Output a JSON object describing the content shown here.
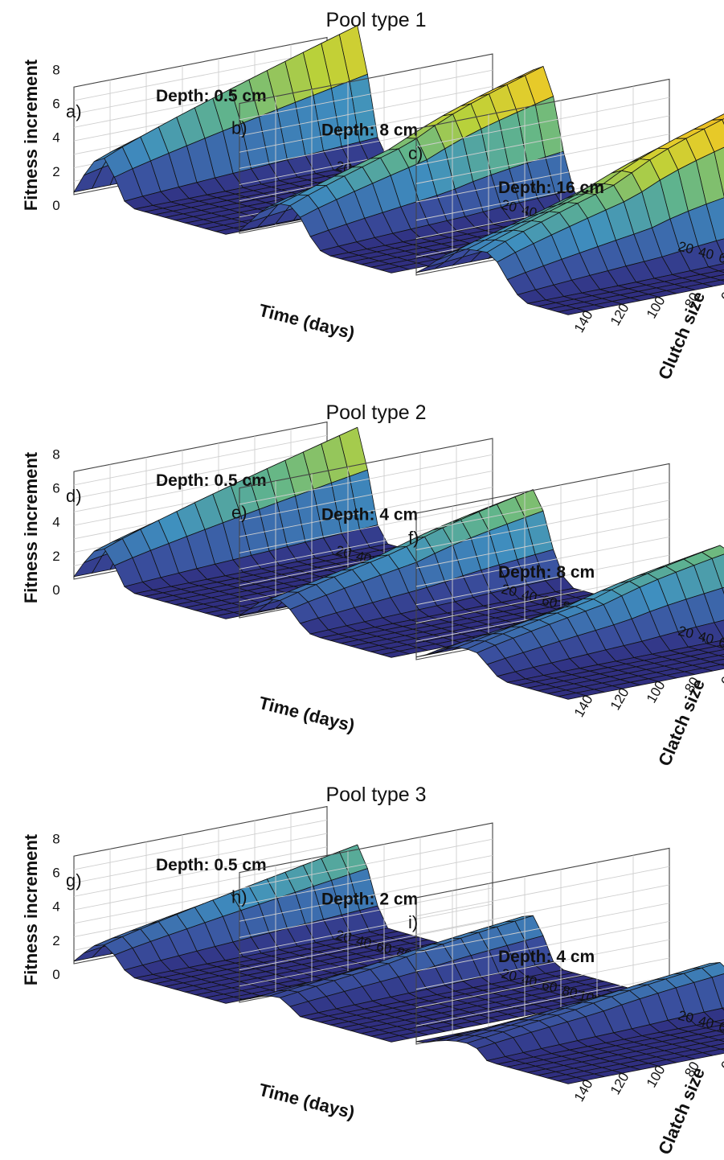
{
  "colors": {
    "surface_low": "#2e2a7c",
    "surface_mid": "#3f8fbf",
    "surface_high_green": "#b9d13a",
    "surface_peak": "#f1b21a",
    "mesh": "#111111",
    "grid": "#cfcfcf"
  },
  "groups": [
    {
      "title": "Pool type 1",
      "clutch_label": "Clutch size",
      "panels": [
        {
          "letter": "a)",
          "depth_label": "Depth: 0.5 cm",
          "peak_value": 7.4,
          "peak_day": 30,
          "fade_days": 50,
          "secondary": 0
        },
        {
          "letter": "b)",
          "depth_label": "Depth: 8 cm",
          "peak_value": 7.6,
          "peak_day": 50,
          "fade_days": 80,
          "secondary": 2.4
        },
        {
          "letter": "c)",
          "depth_label": "Depth: 16 cm",
          "peak_value": 7.8,
          "peak_day": 70,
          "fade_days": 105,
          "secondary": 3.6
        }
      ]
    },
    {
      "title": "Pool type 2",
      "clutch_label": "Clatch size",
      "panels": [
        {
          "letter": "d)",
          "depth_label": "Depth: 0.5 cm",
          "peak_value": 6.4,
          "peak_day": 30,
          "fade_days": 50,
          "secondary": 0
        },
        {
          "letter": "e)",
          "depth_label": "Depth: 4 cm",
          "peak_value": 5.2,
          "peak_day": 40,
          "fade_days": 70,
          "secondary": 1.6
        },
        {
          "letter": "f)",
          "depth_label": "Depth: 8 cm",
          "peak_value": 4.6,
          "peak_day": 55,
          "fade_days": 85,
          "secondary": 1.8
        }
      ]
    },
    {
      "title": "Pool type 3",
      "clutch_label": "Clatch size",
      "panels": [
        {
          "letter": "g)",
          "depth_label": "Depth: 0.5 cm",
          "peak_value": 4.5,
          "peak_day": 30,
          "fade_days": 55,
          "secondary": 0
        },
        {
          "letter": "h)",
          "depth_label": "Depth: 2 cm",
          "peak_value": 2.8,
          "peak_day": 40,
          "fade_days": 60,
          "secondary": 0.6
        },
        {
          "letter": "i)",
          "depth_label": "Depth: 4 cm",
          "peak_value": 2.7,
          "peak_day": 55,
          "fade_days": 70,
          "secondary": 0.7
        }
      ]
    }
  ],
  "y_axis": {
    "label": "Fitness increment",
    "ticks": [
      "0",
      "2",
      "4",
      "6",
      "8"
    ],
    "range": [
      0,
      8
    ]
  },
  "x_axis": {
    "label": "Time (days)",
    "ticks": [
      "20",
      "40",
      "60",
      "80",
      "100",
      "120",
      "140"
    ],
    "range": [
      0,
      150
    ]
  },
  "clutch_ticks": [
    "0",
    "20",
    "40",
    "60",
    "80",
    "100",
    "120",
    "140"
  ],
  "chart_data": {
    "type": "surface",
    "description_of_axes": {
      "x": "Time (days)",
      "y": "Clutch size",
      "z": "Fitness increment"
    },
    "x_range": [
      0,
      150
    ],
    "y_range": [
      0,
      140
    ],
    "z_range": [
      0,
      8
    ],
    "panels": [
      {
        "id": "a)",
        "group": "Pool type 1",
        "depth": "Depth: 0.5 cm",
        "max_z": 7.4
      },
      {
        "id": "b)",
        "group": "Pool type 1",
        "depth": "Depth: 8 cm",
        "max_z": 7.6
      },
      {
        "id": "c)",
        "group": "Pool type 1",
        "depth": "Depth: 16 cm",
        "max_z": 7.8
      },
      {
        "id": "d)",
        "group": "Pool type 2",
        "depth": "Depth: 0.5 cm",
        "max_z": 6.4
      },
      {
        "id": "e)",
        "group": "Pool type 2",
        "depth": "Depth: 4 cm",
        "max_z": 5.2
      },
      {
        "id": "f)",
        "group": "Pool type 2",
        "depth": "Depth: 8 cm",
        "max_z": 4.6
      },
      {
        "id": "g)",
        "group": "Pool type 3",
        "depth": "Depth: 0.5 cm",
        "max_z": 4.5
      },
      {
        "id": "h)",
        "group": "Pool type 3",
        "depth": "Depth: 2 cm",
        "max_z": 2.8
      },
      {
        "id": "i)",
        "group": "Pool type 3",
        "depth": "Depth: 4 cm",
        "max_z": 2.7
      }
    ]
  }
}
